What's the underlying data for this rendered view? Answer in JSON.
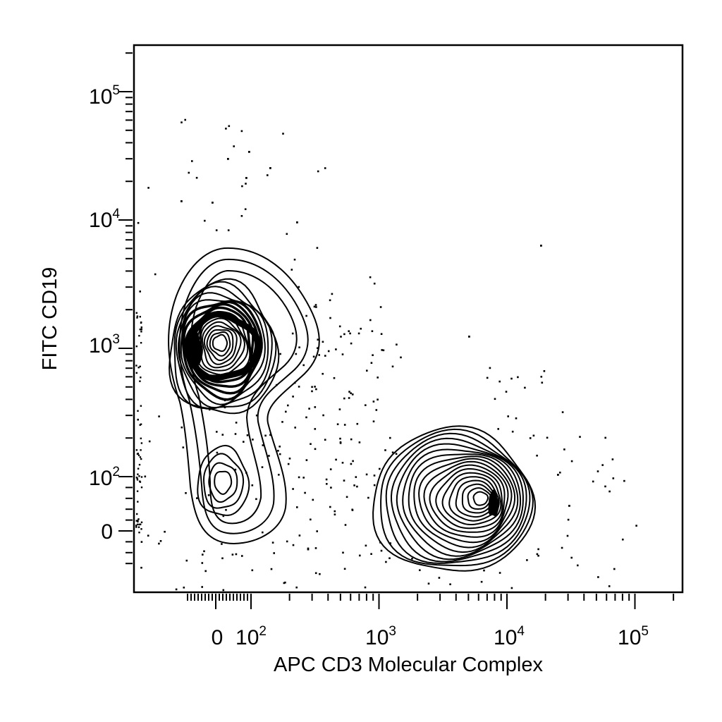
{
  "chart_data": {
    "type": "contour",
    "title": "",
    "xlabel": "APC CD3 Molecular Complex",
    "ylabel": "FITC CD19",
    "x_scale": "biexponential",
    "y_scale": "biexponential",
    "xlim": [
      -80,
      200000
    ],
    "ylim": [
      -60,
      200000
    ],
    "grid": false,
    "legend": "none",
    "x_ticks": [
      {
        "base": "0",
        "exp": ""
      },
      {
        "base": "10",
        "exp": "2"
      },
      {
        "base": "10",
        "exp": "3"
      },
      {
        "base": "10",
        "exp": "4"
      },
      {
        "base": "10",
        "exp": "5"
      }
    ],
    "y_ticks": [
      {
        "base": "0",
        "exp": ""
      },
      {
        "base": "10",
        "exp": "2"
      },
      {
        "base": "10",
        "exp": "3"
      },
      {
        "base": "10",
        "exp": "4"
      },
      {
        "base": "10",
        "exp": "5"
      }
    ],
    "populations": [
      {
        "name": "",
        "center": [
          20,
          1000
        ],
        "peak_count": 17
      },
      {
        "name": "",
        "center": [
          20,
          90
        ],
        "peak_count": 4
      },
      {
        "name": "",
        "center": [
          5500,
          60
        ],
        "peak_count": 18
      }
    ],
    "line_color": "#000000"
  }
}
